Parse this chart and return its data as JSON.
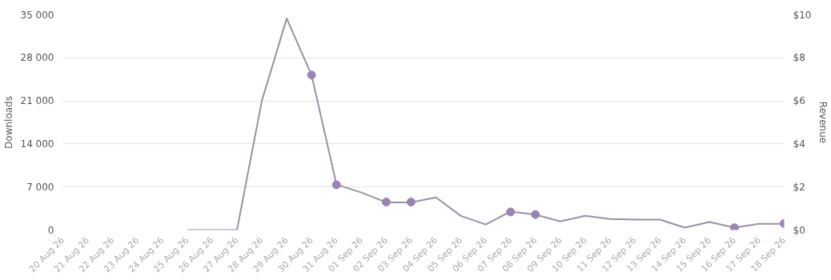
{
  "chart_data": {
    "type": "line",
    "xlabel": null,
    "ylabel": "Downloads",
    "y2label": "Revenue",
    "categories": [
      "20 Aug 26",
      "21 Aug 26",
      "22 Aug 26",
      "23 Aug 26",
      "24 Aug 26",
      "25 Aug 26",
      "26 Aug 26",
      "27 Aug 26",
      "28 Aug 26",
      "29 Aug 26",
      "30 Aug 26",
      "31 Aug 26",
      "01 Sep 26",
      "02 Sep 26",
      "03 Sep 26",
      "04 Sep 26",
      "05 Sep 26",
      "06 Sep 26",
      "07 Sep 26",
      "08 Sep 26",
      "09 Sep 26",
      "10 Sep 26",
      "11 Sep 26",
      "12 Sep 26",
      "13 Sep 26",
      "14 Sep 26",
      "15 Sep 26",
      "16 Sep 26",
      "17 Sep 26",
      "18 Sep 26"
    ],
    "series": [
      {
        "color": "#9a90a4",
        "marker": "none",
        "values": [
          null,
          null,
          null,
          null,
          null,
          0,
          0,
          0,
          21000,
          34400,
          25200,
          7400,
          6100,
          4500,
          4500,
          5300,
          2300,
          900,
          3000,
          2500,
          1400,
          2300,
          1800,
          1700,
          1700,
          400,
          1300,
          400,
          1000,
          1000
        ]
      },
      {
        "type": "scatter",
        "axis": "y2",
        "color": "#9b84b5",
        "marker": "circle",
        "values": [
          null,
          null,
          null,
          null,
          null,
          null,
          null,
          null,
          null,
          null,
          7.2,
          2.1,
          null,
          1.3,
          1.3,
          null,
          null,
          null,
          0.84,
          0.72,
          null,
          null,
          null,
          null,
          null,
          null,
          null,
          0.1,
          null,
          0.3
        ]
      }
    ],
    "ylim": [
      0,
      35000
    ],
    "yticks": [
      0,
      {
        "value": 7000,
        "label": "7 000"
      },
      {
        "value": 14000,
        "label": "14 000"
      },
      {
        "value": 21000,
        "label": "21 000"
      },
      {
        "value": 28000,
        "label": "28 000"
      },
      {
        "value": 35000,
        "label": "35 000"
      }
    ],
    "y2lim": [
      0,
      10
    ],
    "y2ticks": [
      {
        "value": 0,
        "label": "$0"
      },
      {
        "value": 2,
        "label": "$2"
      },
      {
        "value": 4,
        "label": "$4"
      },
      {
        "value": 6,
        "label": "$6"
      },
      {
        "value": 8,
        "label": "$8"
      },
      {
        "value": 10,
        "label": "$10"
      }
    ],
    "grid": "y"
  }
}
